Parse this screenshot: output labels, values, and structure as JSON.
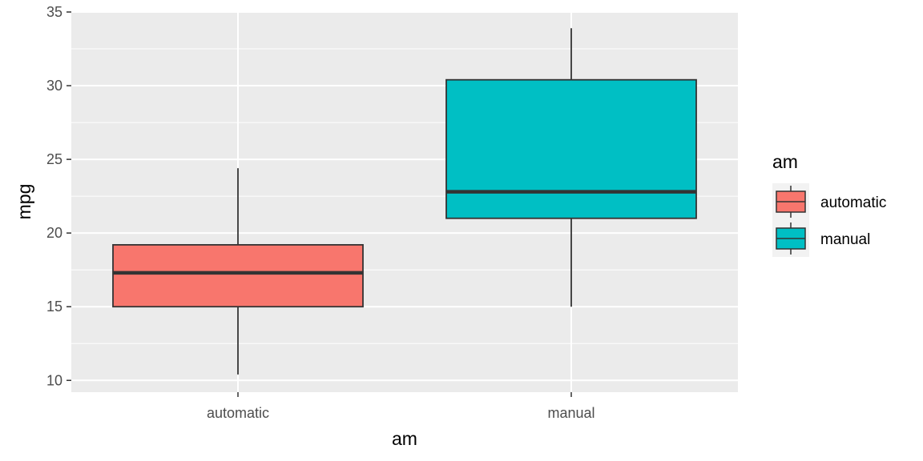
{
  "chart_data": {
    "type": "boxplot",
    "xlabel": "am",
    "ylabel": "mpg",
    "categories": [
      "automatic",
      "manual"
    ],
    "ylim": [
      9.2,
      35.0
    ],
    "yticks": [
      10,
      15,
      20,
      25,
      30,
      35
    ],
    "grid": true,
    "legend": {
      "title": "am",
      "position": "right",
      "entries": [
        "automatic",
        "manual"
      ]
    },
    "colors": {
      "automatic": "#F8766D",
      "manual": "#00BFC4",
      "panel": "#EBEBEB",
      "grid": "#FFFFFF",
      "box_line": "#333333"
    },
    "boxes": [
      {
        "category": "automatic",
        "min": 10.4,
        "q1": 15.0,
        "median": 17.3,
        "q3": 19.2,
        "max": 24.4
      },
      {
        "category": "manual",
        "min": 15.0,
        "q1": 21.0,
        "median": 22.8,
        "q3": 30.4,
        "max": 33.9
      }
    ]
  }
}
